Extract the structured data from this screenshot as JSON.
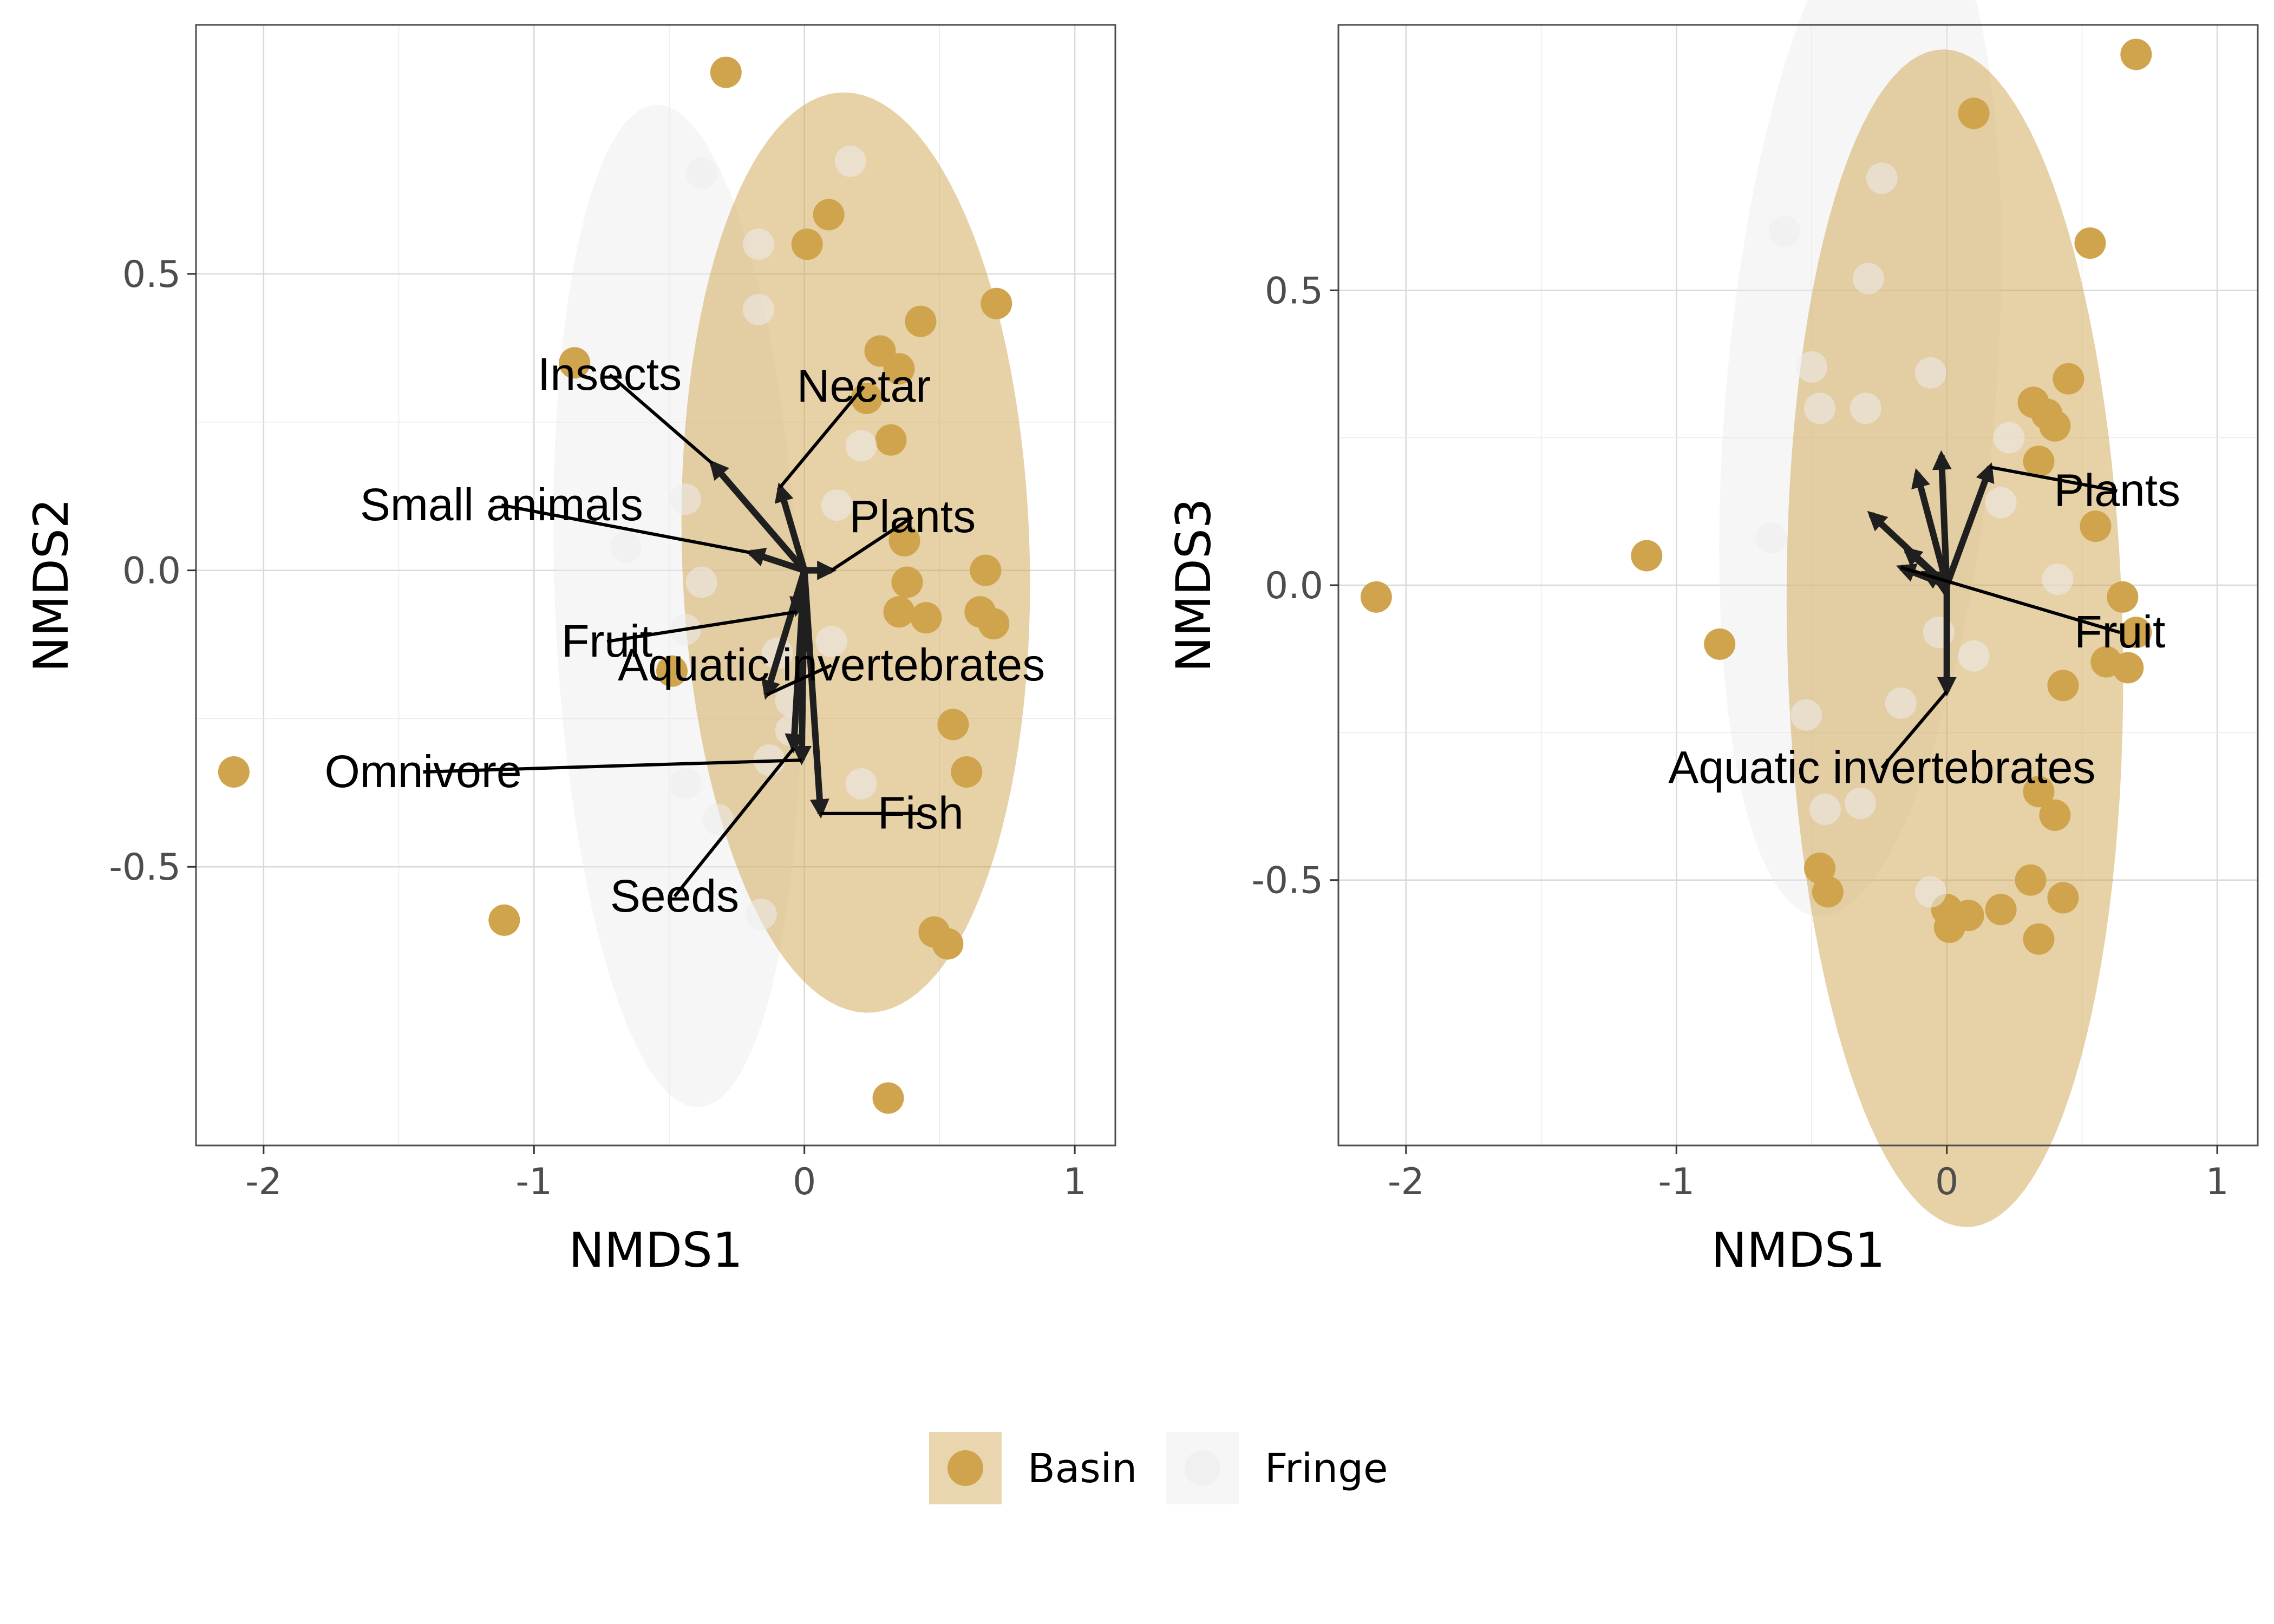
{
  "colors": {
    "Basin": "#cfa44d",
    "Fringe": "#ececec",
    "arrow": "#1f1f1f",
    "grid": "#d9d9d9",
    "panel_border": "#4d4d4d"
  },
  "legend": {
    "items": [
      {
        "label": "Basin"
      },
      {
        "label": "Fringe"
      }
    ]
  },
  "chart_data": [
    {
      "type": "scatter",
      "title": "",
      "xlabel": "NMDS1",
      "ylabel": "NMDS2",
      "xlim": [
        -2.25,
        1.15
      ],
      "ylim": [
        -0.97,
        0.92
      ],
      "xticks": [
        -2,
        -1,
        0,
        1
      ],
      "xtick_labels": [
        "-2",
        "-1",
        "0",
        "1"
      ],
      "yticks": [
        -0.5,
        0.0,
        0.5
      ],
      "ytick_labels": [
        "-0.5",
        "0.0",
        "0.5"
      ],
      "grid": true,
      "legend_position": "bottom",
      "ellipses": [
        {
          "group": "Fringe",
          "cx": -0.47,
          "cy": -0.06,
          "rx": 0.45,
          "ry": 0.85,
          "angle": 7
        },
        {
          "group": "Basin",
          "cx": 0.19,
          "cy": 0.03,
          "rx": 0.78,
          "ry": 0.64,
          "angle": 100
        }
      ],
      "series": [
        {
          "name": "Basin",
          "points": [
            [
              -0.29,
              0.84
            ],
            [
              0.09,
              0.6
            ],
            [
              0.01,
              0.55
            ],
            [
              0.71,
              0.45
            ],
            [
              0.43,
              0.42
            ],
            [
              -0.85,
              0.35
            ],
            [
              0.28,
              0.37
            ],
            [
              0.35,
              0.34
            ],
            [
              0.23,
              0.29
            ],
            [
              0.32,
              0.22
            ],
            [
              0.37,
              0.05
            ],
            [
              0.67,
              0.0
            ],
            [
              0.38,
              -0.02
            ],
            [
              0.35,
              -0.07
            ],
            [
              0.45,
              -0.08
            ],
            [
              0.65,
              -0.07
            ],
            [
              0.7,
              -0.09
            ],
            [
              -0.49,
              -0.17
            ],
            [
              0.55,
              -0.26
            ],
            [
              0.6,
              -0.34
            ],
            [
              -2.11,
              -0.34
            ],
            [
              -1.11,
              -0.59
            ],
            [
              0.48,
              -0.61
            ],
            [
              0.53,
              -0.63
            ],
            [
              0.31,
              -0.89
            ]
          ]
        },
        {
          "name": "Fringe",
          "points": [
            [
              -0.38,
              0.67
            ],
            [
              0.17,
              0.69
            ],
            [
              -0.17,
              0.55
            ],
            [
              -0.17,
              0.44
            ],
            [
              0.21,
              0.21
            ],
            [
              0.12,
              0.11
            ],
            [
              -0.44,
              0.12
            ],
            [
              -0.66,
              0.04
            ],
            [
              -0.38,
              -0.02
            ],
            [
              -0.44,
              -0.1
            ],
            [
              -0.1,
              -0.14
            ],
            [
              0.1,
              -0.12
            ],
            [
              -0.05,
              -0.22
            ],
            [
              -0.05,
              -0.27
            ],
            [
              -0.13,
              -0.32
            ],
            [
              -0.44,
              -0.36
            ],
            [
              0.21,
              -0.36
            ],
            [
              -0.32,
              -0.42
            ],
            [
              -0.16,
              -0.58
            ]
          ]
        }
      ],
      "vectors": [
        {
          "label": "Insects",
          "x": -0.34,
          "y": 0.18
        },
        {
          "label": "Nectar",
          "x": -0.09,
          "y": 0.14
        },
        {
          "label": "Small animals",
          "x": -0.2,
          "y": 0.03
        },
        {
          "label": "Plants",
          "x": 0.1,
          "y": 0.0
        },
        {
          "label": "Fruit",
          "x": -0.03,
          "y": -0.07
        },
        {
          "label": "Aquatic invertebrates",
          "x": -0.14,
          "y": -0.21
        },
        {
          "label": "Omnivore",
          "x": -0.01,
          "y": -0.32
        },
        {
          "label": "Fish",
          "x": 0.06,
          "y": -0.41
        },
        {
          "label": "Seeds",
          "x": -0.04,
          "y": -0.3
        }
      ],
      "vector_labels": [
        {
          "label": "Insects",
          "x": -0.72,
          "y": 0.33
        },
        {
          "label": "Nectar",
          "x": 0.22,
          "y": 0.31
        },
        {
          "label": "Small animals",
          "x": -1.12,
          "y": 0.11
        },
        {
          "label": "Plants",
          "x": 0.4,
          "y": 0.09
        },
        {
          "label": "Fruit",
          "x": -0.73,
          "y": -0.12
        },
        {
          "label": "Aquatic invertebrates",
          "x": 0.1,
          "y": -0.16
        },
        {
          "label": "Omnivore",
          "x": -1.41,
          "y": -0.34
        },
        {
          "label": "Fish",
          "x": 0.43,
          "y": -0.41
        },
        {
          "label": "Seeds",
          "x": -0.48,
          "y": -0.55
        }
      ]
    },
    {
      "type": "scatter",
      "title": "",
      "xlabel": "NMDS1",
      "ylabel": "NMDS3",
      "xlim": [
        -2.25,
        1.15
      ],
      "ylim": [
        -0.95,
        0.95
      ],
      "xticks": [
        -2,
        -1,
        0,
        1
      ],
      "xtick_labels": [
        "-2",
        "-1",
        "0",
        "1"
      ],
      "yticks": [
        -0.5,
        0.0,
        0.5
      ],
      "ytick_labels": [
        "-0.5",
        "0.0",
        "0.5"
      ],
      "grid": true,
      "legend_position": "bottom",
      "ellipses": [
        {
          "group": "Fringe",
          "cx": -0.32,
          "cy": 0.31,
          "rx": 0.89,
          "ry": 0.49,
          "angle": 76
        },
        {
          "group": "Basin",
          "cx": 0.03,
          "cy": -0.09,
          "rx": 1.0,
          "ry": 0.62,
          "angle": 94
        }
      ],
      "series": [
        {
          "name": "Basin",
          "points": [
            [
              0.7,
              0.9
            ],
            [
              0.1,
              0.8
            ],
            [
              0.53,
              0.58
            ],
            [
              0.45,
              0.35
            ],
            [
              0.32,
              0.31
            ],
            [
              0.37,
              0.29
            ],
            [
              0.4,
              0.27
            ],
            [
              0.34,
              0.21
            ],
            [
              0.55,
              0.1
            ],
            [
              -1.11,
              0.05
            ],
            [
              -2.11,
              -0.02
            ],
            [
              0.65,
              -0.02
            ],
            [
              0.7,
              -0.08
            ],
            [
              -0.84,
              -0.1
            ],
            [
              0.59,
              -0.13
            ],
            [
              0.67,
              -0.14
            ],
            [
              0.43,
              -0.17
            ],
            [
              0.34,
              -0.35
            ],
            [
              0.4,
              -0.39
            ],
            [
              -0.47,
              -0.48
            ],
            [
              -0.44,
              -0.52
            ],
            [
              0.31,
              -0.5
            ],
            [
              0.43,
              -0.53
            ],
            [
              0.0,
              -0.55
            ],
            [
              0.08,
              -0.56
            ],
            [
              0.2,
              -0.55
            ],
            [
              0.01,
              -0.58
            ],
            [
              0.34,
              -0.6
            ]
          ]
        },
        {
          "name": "Fringe",
          "points": [
            [
              -0.24,
              0.69
            ],
            [
              -0.6,
              0.6
            ],
            [
              -0.29,
              0.52
            ],
            [
              -0.5,
              0.37
            ],
            [
              -0.06,
              0.36
            ],
            [
              -0.3,
              0.3
            ],
            [
              -0.47,
              0.3
            ],
            [
              0.23,
              0.25
            ],
            [
              0.2,
              0.14
            ],
            [
              -0.65,
              0.08
            ],
            [
              0.41,
              0.01
            ],
            [
              -0.03,
              -0.08
            ],
            [
              0.1,
              -0.12
            ],
            [
              -0.17,
              -0.2
            ],
            [
              -0.52,
              -0.22
            ],
            [
              -0.32,
              -0.37
            ],
            [
              -0.45,
              -0.38
            ],
            [
              -0.06,
              -0.52
            ]
          ]
        }
      ],
      "vectors": [
        {
          "label": "Plants",
          "x": 0.16,
          "y": 0.2
        },
        {
          "label": "",
          "x": -0.02,
          "y": 0.22
        },
        {
          "label": "",
          "x": -0.11,
          "y": 0.19
        },
        {
          "label": "",
          "x": -0.28,
          "y": 0.12
        },
        {
          "label": "",
          "x": -0.15,
          "y": 0.06
        },
        {
          "label": "Fruit",
          "x": -0.17,
          "y": 0.03
        },
        {
          "label": "",
          "x": -0.08,
          "y": 0.02
        },
        {
          "label": "",
          "x": -0.04,
          "y": 0.01
        },
        {
          "label": "Aquatic invertebrates",
          "x": 0.0,
          "y": -0.18
        }
      ],
      "vector_labels": [
        {
          "label": "Plants",
          "x": 0.63,
          "y": 0.16
        },
        {
          "label": "Fruit",
          "x": 0.64,
          "y": -0.08
        },
        {
          "label": "Aquatic invertebrates",
          "x": -0.24,
          "y": -0.31
        }
      ]
    }
  ]
}
